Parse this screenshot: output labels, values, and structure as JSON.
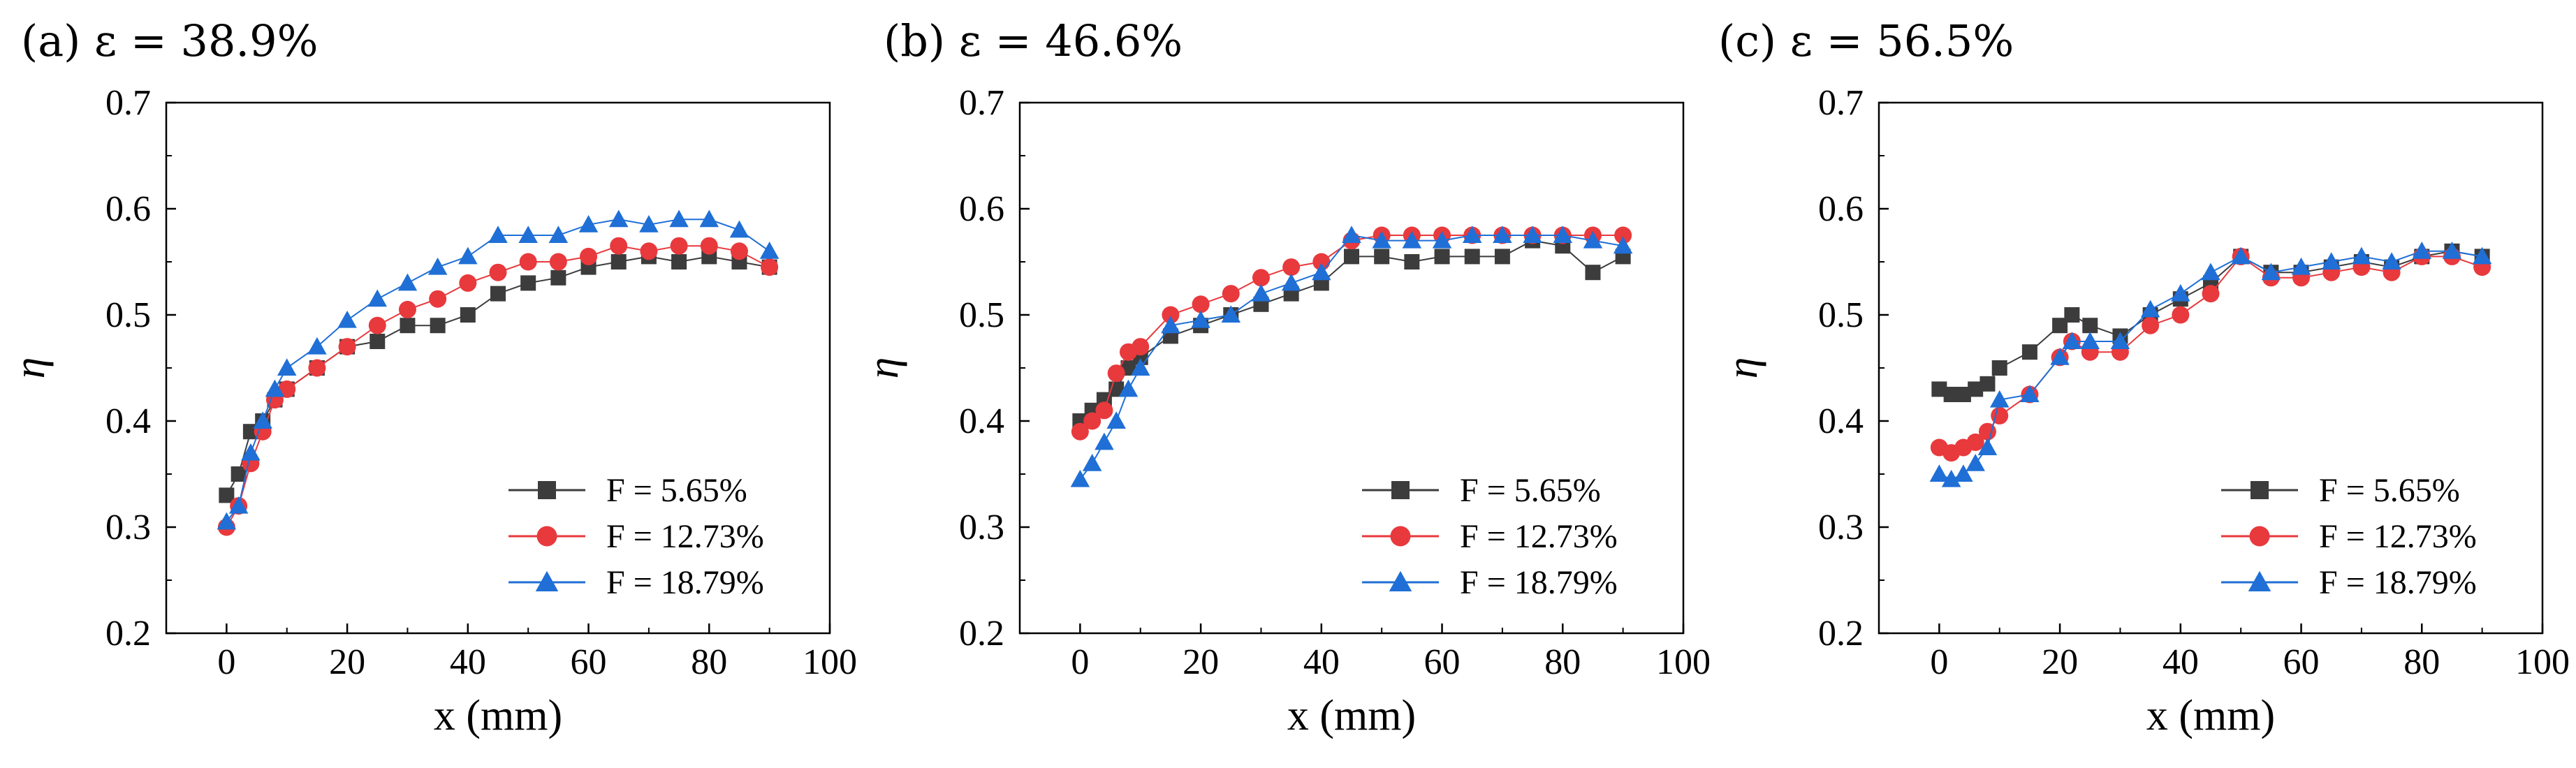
{
  "chart_data": [
    {
      "type": "scatter",
      "panel": "(a)",
      "title": "(a) ε = 38.9%",
      "xlabel": "x (mm)",
      "ylabel": "η",
      "xlim": [
        -10,
        100
      ],
      "ylim": [
        0.2,
        0.7
      ],
      "xticks": [
        0,
        20,
        40,
        60,
        80,
        100
      ],
      "yticks": [
        0.2,
        0.3,
        0.4,
        0.5,
        0.6,
        0.7
      ],
      "grid": false,
      "legend_position": "bottom-right",
      "series": [
        {
          "name": "F = 5.65%",
          "color": "#3c3c3c",
          "marker": "square",
          "x": [
            0,
            2,
            4,
            6,
            8,
            10,
            15,
            20,
            25,
            30,
            35,
            40,
            45,
            50,
            55,
            60,
            65,
            70,
            75,
            80,
            85,
            90
          ],
          "y": [
            0.33,
            0.35,
            0.39,
            0.4,
            0.42,
            0.43,
            0.45,
            0.47,
            0.475,
            0.49,
            0.49,
            0.5,
            0.52,
            0.53,
            0.535,
            0.545,
            0.55,
            0.555,
            0.55,
            0.555,
            0.55,
            0.545
          ]
        },
        {
          "name": "F = 12.73%",
          "color": "#e8393d",
          "marker": "circle",
          "x": [
            0,
            2,
            4,
            6,
            8,
            10,
            15,
            20,
            25,
            30,
            35,
            40,
            45,
            50,
            55,
            60,
            65,
            70,
            75,
            80,
            85,
            90
          ],
          "y": [
            0.3,
            0.32,
            0.36,
            0.39,
            0.42,
            0.43,
            0.45,
            0.47,
            0.49,
            0.505,
            0.515,
            0.53,
            0.54,
            0.55,
            0.55,
            0.555,
            0.565,
            0.56,
            0.565,
            0.565,
            0.56,
            0.545
          ]
        },
        {
          "name": "F = 18.79%",
          "color": "#1f6fd6",
          "marker": "triangle",
          "x": [
            0,
            2,
            4,
            6,
            8,
            10,
            15,
            20,
            25,
            30,
            35,
            40,
            45,
            50,
            55,
            60,
            65,
            70,
            75,
            80,
            85,
            90
          ],
          "y": [
            0.305,
            0.32,
            0.37,
            0.4,
            0.43,
            0.45,
            0.47,
            0.495,
            0.515,
            0.53,
            0.545,
            0.555,
            0.575,
            0.575,
            0.575,
            0.585,
            0.59,
            0.585,
            0.59,
            0.59,
            0.58,
            0.56
          ]
        }
      ]
    },
    {
      "type": "scatter",
      "panel": "(b)",
      "title": "(b) ε = 46.6%",
      "xlabel": "x (mm)",
      "ylabel": "η",
      "xlim": [
        -10,
        100
      ],
      "ylim": [
        0.2,
        0.7
      ],
      "xticks": [
        0,
        20,
        40,
        60,
        80,
        100
      ],
      "yticks": [
        0.2,
        0.3,
        0.4,
        0.5,
        0.6,
        0.7
      ],
      "grid": false,
      "legend_position": "bottom-right",
      "series": [
        {
          "name": "F = 5.65%",
          "color": "#3c3c3c",
          "marker": "square",
          "x": [
            0,
            2,
            4,
            6,
            8,
            10,
            15,
            20,
            25,
            30,
            35,
            40,
            45,
            50,
            55,
            60,
            65,
            70,
            75,
            80,
            85,
            90
          ],
          "y": [
            0.4,
            0.41,
            0.42,
            0.43,
            0.45,
            0.46,
            0.48,
            0.49,
            0.5,
            0.51,
            0.52,
            0.53,
            0.555,
            0.555,
            0.55,
            0.555,
            0.555,
            0.555,
            0.57,
            0.565,
            0.54,
            0.555
          ]
        },
        {
          "name": "F = 12.73%",
          "color": "#e8393d",
          "marker": "circle",
          "x": [
            0,
            2,
            4,
            6,
            8,
            10,
            15,
            20,
            25,
            30,
            35,
            40,
            45,
            50,
            55,
            60,
            65,
            70,
            75,
            80,
            85,
            90
          ],
          "y": [
            0.39,
            0.4,
            0.41,
            0.445,
            0.465,
            0.47,
            0.5,
            0.51,
            0.52,
            0.535,
            0.545,
            0.55,
            0.57,
            0.575,
            0.575,
            0.575,
            0.575,
            0.575,
            0.575,
            0.575,
            0.575,
            0.575
          ]
        },
        {
          "name": "F = 18.79%",
          "color": "#1f6fd6",
          "marker": "triangle",
          "x": [
            0,
            2,
            4,
            6,
            8,
            10,
            15,
            20,
            25,
            30,
            35,
            40,
            45,
            50,
            55,
            60,
            65,
            70,
            75,
            80,
            85,
            90
          ],
          "y": [
            0.345,
            0.36,
            0.38,
            0.4,
            0.43,
            0.45,
            0.49,
            0.495,
            0.5,
            0.52,
            0.53,
            0.54,
            0.575,
            0.57,
            0.57,
            0.57,
            0.575,
            0.575,
            0.575,
            0.575,
            0.57,
            0.565
          ]
        }
      ]
    },
    {
      "type": "scatter",
      "panel": "(c)",
      "title": "(c) ε = 56.5%",
      "xlabel": "x (mm)",
      "ylabel": "η",
      "xlim": [
        -10,
        100
      ],
      "ylim": [
        0.2,
        0.7
      ],
      "xticks": [
        0,
        20,
        40,
        60,
        80,
        100
      ],
      "yticks": [
        0.2,
        0.3,
        0.4,
        0.5,
        0.6,
        0.7
      ],
      "grid": false,
      "legend_position": "bottom-right",
      "series": [
        {
          "name": "F = 5.65%",
          "color": "#3c3c3c",
          "marker": "square",
          "x": [
            0,
            2,
            4,
            6,
            8,
            10,
            15,
            20,
            22,
            25,
            30,
            35,
            40,
            45,
            50,
            55,
            60,
            65,
            70,
            75,
            80,
            85,
            90
          ],
          "y": [
            0.43,
            0.425,
            0.425,
            0.43,
            0.435,
            0.45,
            0.465,
            0.49,
            0.5,
            0.49,
            0.48,
            0.5,
            0.515,
            0.53,
            0.555,
            0.54,
            0.54,
            0.545,
            0.55,
            0.545,
            0.555,
            0.56,
            0.555
          ]
        },
        {
          "name": "F = 12.73%",
          "color": "#e8393d",
          "marker": "circle",
          "x": [
            0,
            2,
            4,
            6,
            8,
            10,
            15,
            20,
            22,
            25,
            30,
            35,
            40,
            45,
            50,
            55,
            60,
            65,
            70,
            75,
            80,
            85,
            90
          ],
          "y": [
            0.375,
            0.37,
            0.375,
            0.38,
            0.39,
            0.405,
            0.425,
            0.46,
            0.475,
            0.465,
            0.465,
            0.49,
            0.5,
            0.52,
            0.555,
            0.535,
            0.535,
            0.54,
            0.545,
            0.54,
            0.555,
            0.555,
            0.545
          ]
        },
        {
          "name": "F = 18.79%",
          "color": "#1f6fd6",
          "marker": "triangle",
          "x": [
            0,
            2,
            4,
            6,
            8,
            10,
            15,
            20,
            22,
            25,
            30,
            35,
            40,
            45,
            50,
            55,
            60,
            65,
            70,
            75,
            80,
            85,
            90
          ],
          "y": [
            0.35,
            0.345,
            0.35,
            0.36,
            0.375,
            0.42,
            0.425,
            0.46,
            0.475,
            0.475,
            0.475,
            0.505,
            0.52,
            0.54,
            0.555,
            0.54,
            0.545,
            0.55,
            0.555,
            0.55,
            0.56,
            0.56,
            0.555
          ]
        }
      ]
    }
  ]
}
